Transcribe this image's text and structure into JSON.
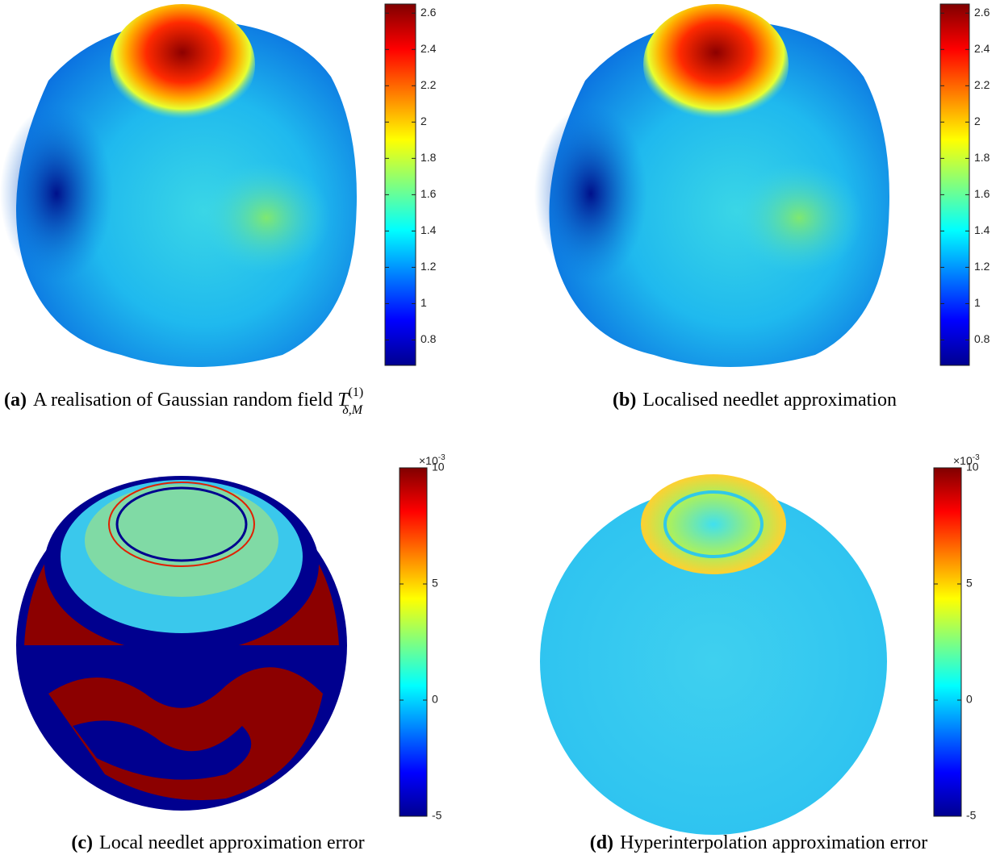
{
  "panels": [
    {
      "label": "(a)",
      "caption": "A realisation of Gaussian random field ",
      "symbol": "T",
      "superscript": "(1)",
      "subscript": "δ,M",
      "colorbar": {
        "lim": [
          0.66,
          2.65
        ],
        "ticks": [
          0.8,
          1,
          1.2,
          1.4,
          1.6,
          1.8,
          2,
          2.2,
          2.4,
          2.6
        ]
      }
    },
    {
      "label": "(b)",
      "caption": "Localised needlet approximation",
      "colorbar": {
        "lim": [
          0.66,
          2.65
        ],
        "ticks": [
          0.8,
          1,
          1.2,
          1.4,
          1.6,
          1.8,
          2,
          2.2,
          2.4,
          2.6
        ]
      }
    },
    {
      "label": "(c)",
      "caption": "Local needlet approximation error",
      "colorbar": {
        "lim": [
          -5,
          10
        ],
        "ticks": [
          -5,
          0,
          5,
          10
        ],
        "exponent_base": "×10",
        "exponent_power": "-3"
      }
    },
    {
      "label": "(d)",
      "caption": "Hyperinterpolation approximation error",
      "colorbar": {
        "lim": [
          -5,
          10
        ],
        "ticks": [
          -5,
          0,
          5,
          10
        ],
        "exponent_base": "×10",
        "exponent_power": "-3"
      }
    }
  ]
}
